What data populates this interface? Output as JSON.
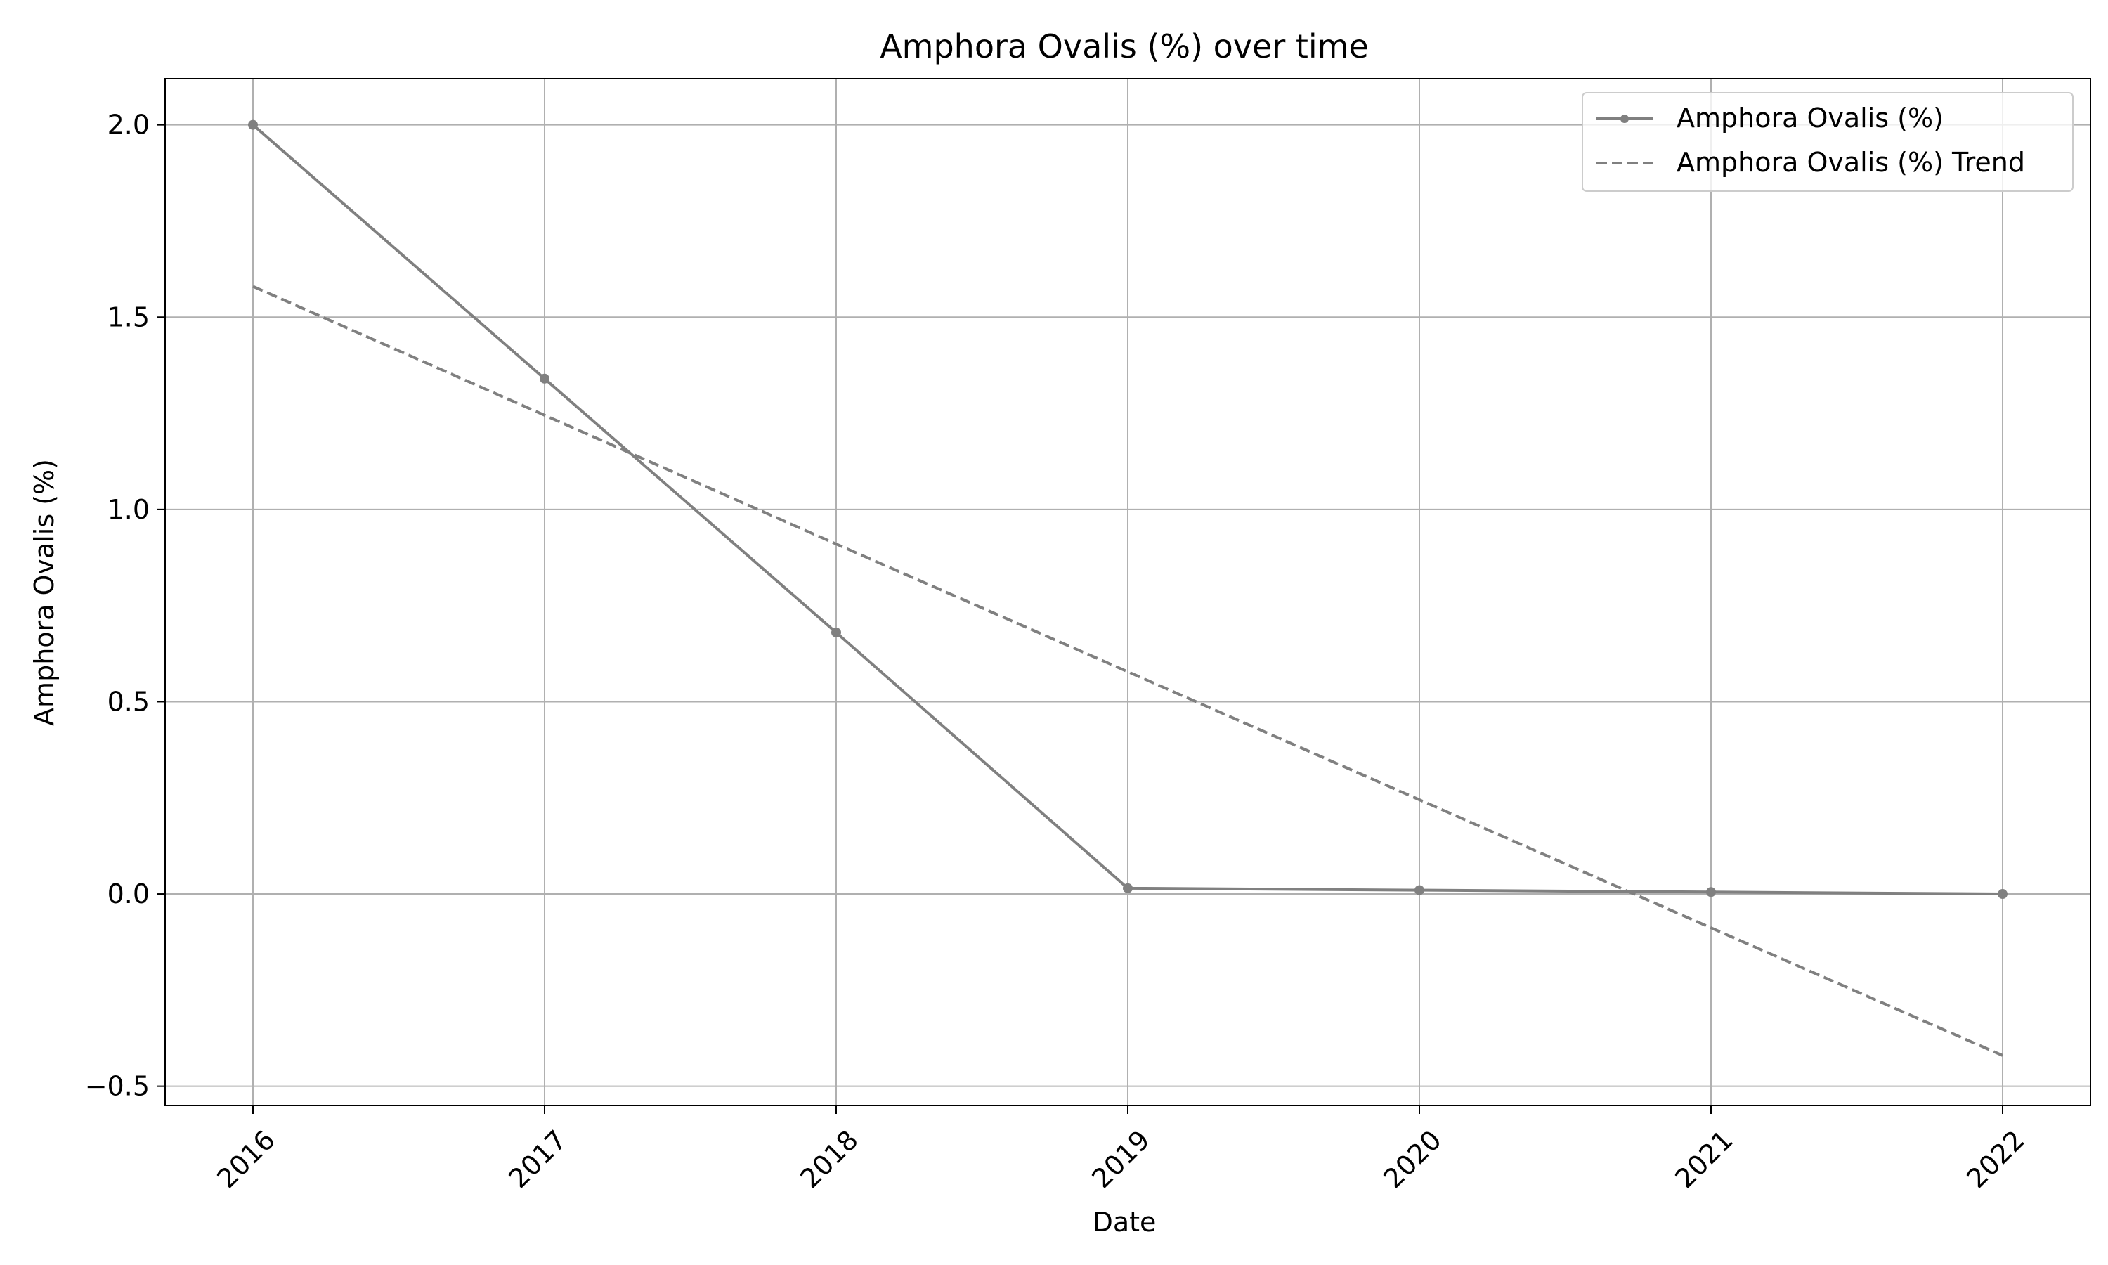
{
  "chart_data": {
    "type": "line",
    "title": "Amphora Ovalis (%) over time",
    "xlabel": "Date",
    "ylabel": "Amphora Ovalis (%)",
    "x": [
      "2016",
      "2017",
      "2018",
      "2019",
      "2020",
      "2021",
      "2022"
    ],
    "x_ticks": [
      "2016",
      "2017",
      "2018",
      "2019",
      "2020",
      "2021",
      "2022"
    ],
    "y_ticks": [
      -0.5,
      0.0,
      0.5,
      1.0,
      1.5,
      2.0
    ],
    "y_tick_labels": [
      "−0.5",
      "0.0",
      "0.5",
      "1.0",
      "1.5",
      "2.0"
    ],
    "ylim": [
      -0.55,
      2.12
    ],
    "grid": true,
    "legend_position": "top-right",
    "series": [
      {
        "name": "Amphora Ovalis (%)",
        "style": "solid-with-markers",
        "color": "#808080",
        "values": [
          2.0,
          1.34,
          0.68,
          0.015,
          0.01,
          0.005,
          0.0
        ]
      },
      {
        "name": "Amphora Ovalis (%) Trend",
        "style": "dashed",
        "color": "#808080",
        "values": [
          1.58,
          1.245,
          0.91,
          0.578,
          0.245,
          -0.088,
          -0.42
        ]
      }
    ]
  }
}
